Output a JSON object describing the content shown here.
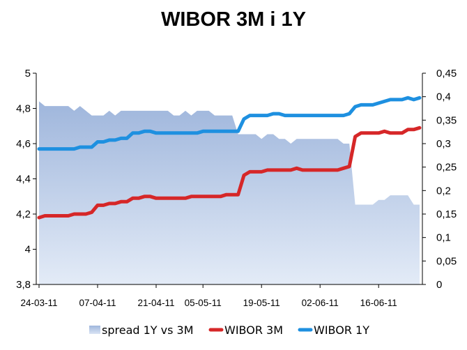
{
  "chart_data": {
    "type": "line",
    "title": "WIBOR 3M i 1Y",
    "x_tick_labels": [
      "24-03-11",
      "07-04-11",
      "21-04-11",
      "05-05-11",
      "19-05-11",
      "02-06-11",
      "16-06-11"
    ],
    "x": [
      "24-03-11",
      "25-03-11",
      "28-03-11",
      "29-03-11",
      "30-03-11",
      "31-03-11",
      "01-04-11",
      "04-04-11",
      "05-04-11",
      "06-04-11",
      "07-04-11",
      "08-04-11",
      "11-04-11",
      "12-04-11",
      "13-04-11",
      "14-04-11",
      "15-04-11",
      "18-04-11",
      "19-04-11",
      "20-04-11",
      "21-04-11",
      "22-04-11",
      "26-04-11",
      "27-04-11",
      "28-04-11",
      "29-04-11",
      "02-05-11",
      "04-05-11",
      "05-05-11",
      "06-05-11",
      "09-05-11",
      "10-05-11",
      "11-05-11",
      "12-05-11",
      "13-05-11",
      "16-05-11",
      "17-05-11",
      "18-05-11",
      "19-05-11",
      "20-05-11",
      "23-05-11",
      "24-05-11",
      "25-05-11",
      "26-05-11",
      "27-05-11",
      "30-05-11",
      "31-05-11",
      "01-06-11",
      "02-06-11",
      "03-06-11",
      "06-06-11",
      "07-06-11",
      "08-06-11",
      "09-06-11",
      "10-06-11",
      "13-06-11",
      "14-06-11",
      "15-06-11",
      "16-06-11",
      "17-06-11",
      "20-06-11",
      "21-06-11",
      "22-06-11",
      "24-06-11",
      "27-06-11",
      "28-06-11"
    ],
    "y_left": {
      "min": 3.8,
      "max": 5.0,
      "step": 0.2,
      "tick_labels": [
        "3,8",
        "4",
        "4,2",
        "4,4",
        "4,6",
        "4,8",
        "5"
      ]
    },
    "y_right": {
      "min": 0,
      "max": 0.45,
      "step": 0.05,
      "tick_labels": [
        "0",
        "0,05",
        "0,1",
        "0,15",
        "0,2",
        "0,25",
        "0,3",
        "0,35",
        "0,4",
        "0,45"
      ]
    },
    "series": [
      {
        "name": "spread 1Y vs 3M",
        "kind": "area",
        "axis": "right",
        "color": "#b4c9e8",
        "values": [
          0.39,
          0.38,
          0.38,
          0.38,
          0.38,
          0.38,
          0.37,
          0.38,
          0.37,
          0.36,
          0.36,
          0.36,
          0.37,
          0.36,
          0.37,
          0.37,
          0.37,
          0.37,
          0.37,
          0.37,
          0.37,
          0.37,
          0.37,
          0.36,
          0.36,
          0.37,
          0.36,
          0.37,
          0.37,
          0.37,
          0.36,
          0.36,
          0.36,
          0.36,
          0.32,
          0.32,
          0.32,
          0.32,
          0.31,
          0.32,
          0.32,
          0.31,
          0.31,
          0.3,
          0.31,
          0.31,
          0.31,
          0.31,
          0.31,
          0.31,
          0.31,
          0.31,
          0.3,
          0.3,
          0.17,
          0.17,
          0.17,
          0.17,
          0.18,
          0.18,
          0.19,
          0.19,
          0.19,
          0.19,
          0.17,
          0.17
        ]
      },
      {
        "name": "WIBOR 3M",
        "kind": "line",
        "axis": "left",
        "color": "#d62728",
        "values": [
          4.18,
          4.19,
          4.19,
          4.19,
          4.19,
          4.19,
          4.2,
          4.2,
          4.2,
          4.21,
          4.25,
          4.25,
          4.26,
          4.26,
          4.27,
          4.27,
          4.29,
          4.29,
          4.3,
          4.3,
          4.29,
          4.29,
          4.29,
          4.29,
          4.29,
          4.29,
          4.3,
          4.3,
          4.3,
          4.3,
          4.3,
          4.3,
          4.31,
          4.31,
          4.31,
          4.42,
          4.44,
          4.44,
          4.44,
          4.45,
          4.45,
          4.45,
          4.45,
          4.45,
          4.46,
          4.45,
          4.45,
          4.45,
          4.45,
          4.45,
          4.45,
          4.45,
          4.46,
          4.47,
          4.64,
          4.66,
          4.66,
          4.66,
          4.66,
          4.67,
          4.66,
          4.66,
          4.66,
          4.68,
          4.68,
          4.69
        ]
      },
      {
        "name": "WIBOR 1Y",
        "kind": "line",
        "axis": "left",
        "color": "#1e90e0",
        "values": [
          4.57,
          4.57,
          4.57,
          4.57,
          4.57,
          4.57,
          4.57,
          4.58,
          4.58,
          4.58,
          4.61,
          4.61,
          4.62,
          4.62,
          4.63,
          4.63,
          4.66,
          4.66,
          4.67,
          4.67,
          4.66,
          4.66,
          4.66,
          4.66,
          4.66,
          4.66,
          4.66,
          4.66,
          4.67,
          4.67,
          4.67,
          4.67,
          4.67,
          4.67,
          4.67,
          4.74,
          4.76,
          4.76,
          4.76,
          4.76,
          4.77,
          4.77,
          4.76,
          4.76,
          4.76,
          4.76,
          4.76,
          4.76,
          4.76,
          4.76,
          4.76,
          4.76,
          4.76,
          4.77,
          4.81,
          4.82,
          4.82,
          4.82,
          4.83,
          4.84,
          4.85,
          4.85,
          4.85,
          4.86,
          4.85,
          4.86
        ]
      }
    ],
    "legend": {
      "position": "bottom",
      "items": [
        {
          "label": "spread 1Y vs 3M",
          "color": "#b4c9e8",
          "marker": "area"
        },
        {
          "label": "WIBOR 3M",
          "color": "#d62728",
          "marker": "line"
        },
        {
          "label": "WIBOR 1Y",
          "color": "#1e90e0",
          "marker": "line"
        }
      ]
    },
    "grid": false
  }
}
